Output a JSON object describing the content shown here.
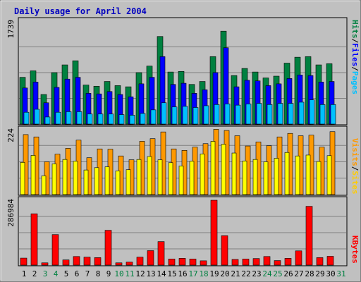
{
  "chart_data": {
    "type": "bar",
    "title": "Daily usage for April 2004",
    "categories": [
      "1",
      "2",
      "3",
      "4",
      "5",
      "6",
      "7",
      "8",
      "9",
      "10",
      "11",
      "12",
      "13",
      "14",
      "15",
      "16",
      "17",
      "18",
      "19",
      "20",
      "21",
      "22",
      "23",
      "24",
      "25",
      "26",
      "27",
      "28",
      "29",
      "30",
      "31"
    ],
    "weekend_days": [
      "3",
      "4",
      "10",
      "11",
      "17",
      "18",
      "24",
      "25",
      "31"
    ],
    "panels": [
      {
        "id": "hits",
        "y_label": "1739",
        "ymax": 1739,
        "right_labels": [
          "Pages",
          "Files",
          "Hits"
        ],
        "series": [
          {
            "name": "Hits",
            "color": "#008040",
            "values": [
              790,
              900,
              500,
              870,
              1000,
              1070,
              660,
              640,
              720,
              650,
              630,
              870,
              980,
              1480,
              880,
              890,
              670,
              720,
              1140,
              1570,
              820,
              940,
              880,
              780,
              810,
              1030,
              1130,
              1140,
              1000,
              1020,
              0
            ]
          },
          {
            "name": "Files",
            "color": "#0000ff",
            "values": [
              610,
              710,
              360,
              620,
              760,
              790,
              520,
              510,
              550,
              500,
              460,
              680,
              790,
              1140,
              670,
              690,
              520,
              580,
              870,
              1290,
              630,
              740,
              730,
              650,
              680,
              770,
              830,
              820,
              710,
              720,
              0
            ]
          },
          {
            "name": "Pages",
            "color": "#00c0ff",
            "values": [
              200,
              250,
              120,
              200,
              210,
              210,
              170,
              170,
              170,
              160,
              150,
              180,
              240,
              360,
              290,
              300,
              280,
              310,
              330,
              340,
              320,
              340,
              350,
              330,
              350,
              350,
              370,
              410,
              330,
              330,
              0
            ]
          }
        ]
      },
      {
        "id": "visits",
        "y_label": "224",
        "ymax": 224,
        "right_labels": [
          "Sites",
          "Visits"
        ],
        "series": [
          {
            "name": "Visits",
            "color": "#ff9900",
            "values": [
              205,
              197,
              112,
              138,
              158,
              186,
              126,
              156,
              155,
              132,
              119,
              182,
              191,
              214,
              156,
              151,
              162,
              174,
              223,
              219,
              201,
              166,
              180,
              167,
              197,
              209,
              201,
              203,
              162,
              215,
              0
            ]
          },
          {
            "name": "Sites",
            "color": "#ffff00",
            "values": [
              110,
              134,
              64,
              105,
              120,
              114,
              84,
              92,
              95,
              81,
              85,
              120,
              130,
              119,
              109,
              98,
              114,
              139,
              182,
              172,
              142,
              115,
              120,
              112,
              124,
              144,
              132,
              135,
              113,
              133,
              0
            ]
          }
        ]
      },
      {
        "id": "kbytes",
        "y_label": "286984",
        "ymax": 286984,
        "right_labels": [
          "KBytes"
        ],
        "series": [
          {
            "name": "KBytes",
            "color": "#ff0000",
            "values": [
              31000,
              227000,
              10000,
              135000,
              23000,
              38000,
              35000,
              33000,
              154000,
              10000,
              13000,
              35000,
              64000,
              104000,
              27000,
              30000,
              27000,
              19000,
              286984,
              130000,
              25000,
              27000,
              29000,
              38000,
              20000,
              30000,
              63000,
              260000,
              33000,
              39000,
              0
            ]
          }
        ]
      }
    ]
  }
}
